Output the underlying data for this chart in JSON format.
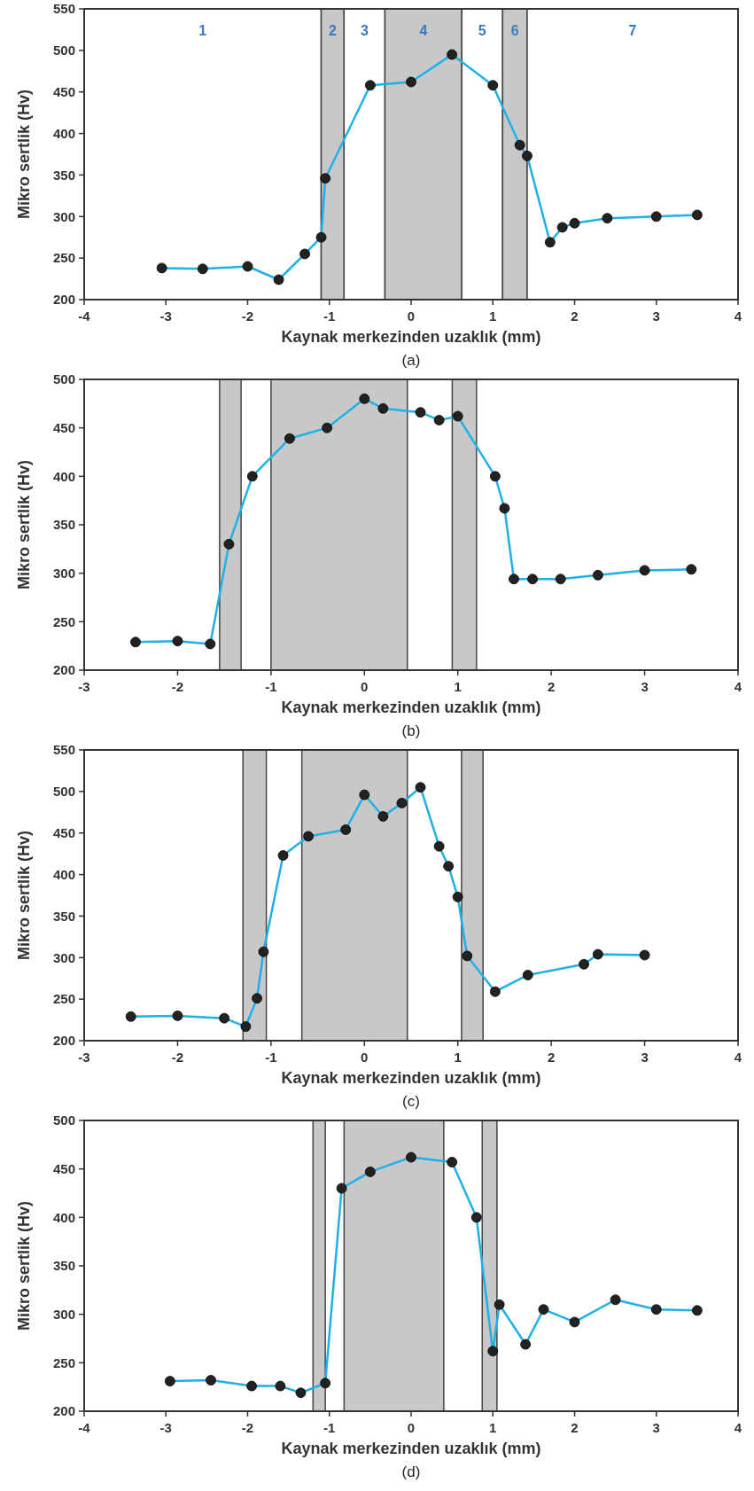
{
  "chart_data": [
    {
      "type": "line",
      "title": "(a)",
      "xlabel": "Kaynak merkezinden uzaklık (mm)",
      "ylabel": "Mikro sertlik (Hv)",
      "xlim": [
        -4,
        4
      ],
      "xticks": [
        -4,
        -3,
        -2,
        -1,
        0,
        1,
        2,
        3,
        4
      ],
      "ylim": [
        200,
        550
      ],
      "yticks": [
        200,
        250,
        300,
        350,
        400,
        450,
        500,
        550
      ],
      "marker": "circle",
      "grid": false,
      "bands": [
        {
          "axis": "x",
          "from": -4,
          "to": -1.1,
          "color": "#ffffff",
          "label": "1"
        },
        {
          "axis": "x",
          "from": -1.1,
          "to": -0.82,
          "color": "#c8c8c8",
          "label": "2"
        },
        {
          "axis": "x",
          "from": -0.82,
          "to": -0.32,
          "color": "#ffffff",
          "label": "3"
        },
        {
          "axis": "x",
          "from": -0.32,
          "to": 0.62,
          "color": "#c8c8c8",
          "label": "4"
        },
        {
          "axis": "x",
          "from": 0.62,
          "to": 1.12,
          "color": "#ffffff",
          "label": "5"
        },
        {
          "axis": "x",
          "from": 1.12,
          "to": 1.42,
          "color": "#c8c8c8",
          "label": "6"
        },
        {
          "axis": "x",
          "from": 1.42,
          "to": 4,
          "color": "#ffffff",
          "label": "7"
        }
      ],
      "series": [
        {
          "color": "#1fb0e8",
          "x": [
            -3.05,
            -2.55,
            -2.0,
            -1.62,
            -1.3,
            -1.1,
            -1.05,
            -0.5,
            0,
            0.5,
            1.0,
            1.33,
            1.42,
            1.7,
            1.85,
            2.0,
            2.4,
            3.0,
            3.5
          ],
          "values": [
            238,
            237,
            240,
            224,
            255,
            275,
            346,
            458,
            462,
            495,
            458,
            386,
            373,
            269,
            287,
            292,
            298,
            300,
            302
          ]
        }
      ]
    },
    {
      "type": "line",
      "title": "(b)",
      "xlabel": "Kaynak merkezinden uzaklık (mm)",
      "ylabel": "Mikro sertlik (Hv)",
      "xlim": [
        -3,
        4
      ],
      "xticks": [
        -3,
        -2,
        -1,
        0,
        1,
        2,
        3,
        4
      ],
      "ylim": [
        200,
        500
      ],
      "yticks": [
        200,
        250,
        300,
        350,
        400,
        450,
        500
      ],
      "marker": "circle",
      "grid": false,
      "bands": [
        {
          "axis": "x",
          "from": -1.55,
          "to": -1.32,
          "color": "#c8c8c8"
        },
        {
          "axis": "x",
          "from": -1.0,
          "to": 0.46,
          "color": "#c8c8c8"
        },
        {
          "axis": "x",
          "from": 0.94,
          "to": 1.2,
          "color": "#c8c8c8"
        }
      ],
      "series": [
        {
          "color": "#1fb0e8",
          "x": [
            -2.45,
            -2.0,
            -1.65,
            -1.45,
            -1.2,
            -0.8,
            -0.4,
            0,
            0.2,
            0.6,
            0.8,
            1.0,
            1.4,
            1.5,
            1.6,
            1.8,
            2.1,
            2.5,
            3.0,
            3.5
          ],
          "values": [
            229,
            230,
            227,
            330,
            400,
            439,
            450,
            480,
            470,
            466,
            458,
            462,
            400,
            367,
            294,
            294,
            294,
            298,
            303,
            304
          ]
        }
      ]
    },
    {
      "type": "line",
      "title": "(c)",
      "xlabel": "Kaynak merkezinden uzaklık (mm)",
      "ylabel": "Mikro sertlik (Hv)",
      "xlim": [
        -3,
        4
      ],
      "xticks": [
        -3,
        -2,
        -1,
        0,
        1,
        2,
        3,
        4
      ],
      "ylim": [
        200,
        550
      ],
      "yticks": [
        200,
        250,
        300,
        350,
        400,
        450,
        500,
        550
      ],
      "marker": "circle",
      "grid": false,
      "bands": [
        {
          "axis": "x",
          "from": -1.3,
          "to": -1.05,
          "color": "#c8c8c8"
        },
        {
          "axis": "x",
          "from": -0.67,
          "to": 0.46,
          "color": "#c8c8c8"
        },
        {
          "axis": "x",
          "from": 1.04,
          "to": 1.27,
          "color": "#c8c8c8"
        }
      ],
      "series": [
        {
          "color": "#1fb0e8",
          "x": [
            -2.5,
            -2.0,
            -1.5,
            -1.27,
            -1.15,
            -1.08,
            -0.87,
            -0.6,
            -0.2,
            0,
            0.2,
            0.4,
            0.6,
            0.8,
            0.9,
            1.0,
            1.1,
            1.4,
            1.75,
            2.35,
            2.5,
            3.0
          ],
          "values": [
            229,
            230,
            227,
            217,
            251,
            307,
            423,
            446,
            454,
            496,
            470,
            486,
            505,
            434,
            410,
            373,
            302,
            259,
            279,
            292,
            304,
            303
          ]
        }
      ]
    },
    {
      "type": "line",
      "title": "(d)",
      "xlabel": "Kaynak merkezinden uzaklık (mm)",
      "ylabel": "Mikro sertlik (Hv)",
      "xlim": [
        -4,
        4
      ],
      "xticks": [
        -4,
        -3,
        -2,
        -1,
        0,
        1,
        2,
        3,
        4
      ],
      "ylim": [
        200,
        500
      ],
      "yticks": [
        200,
        250,
        300,
        350,
        400,
        450,
        500
      ],
      "marker": "circle",
      "grid": false,
      "bands": [
        {
          "axis": "x",
          "from": -1.2,
          "to": -1.05,
          "color": "#c8c8c8"
        },
        {
          "axis": "x",
          "from": -0.82,
          "to": 0.4,
          "color": "#c8c8c8"
        },
        {
          "axis": "x",
          "from": 0.87,
          "to": 1.05,
          "color": "#c8c8c8"
        }
      ],
      "series": [
        {
          "color": "#1fb0e8",
          "x": [
            -2.95,
            -2.45,
            -1.95,
            -1.6,
            -1.35,
            -1.05,
            -0.85,
            -0.5,
            0,
            0.5,
            0.8,
            1.0,
            1.08,
            1.4,
            1.62,
            2.0,
            2.5,
            3.0,
            3.5
          ],
          "values": [
            231,
            232,
            226,
            226,
            219,
            229,
            430,
            447,
            462,
            457,
            400,
            262,
            310,
            269,
            305,
            292,
            315,
            305,
            304
          ]
        }
      ]
    }
  ]
}
